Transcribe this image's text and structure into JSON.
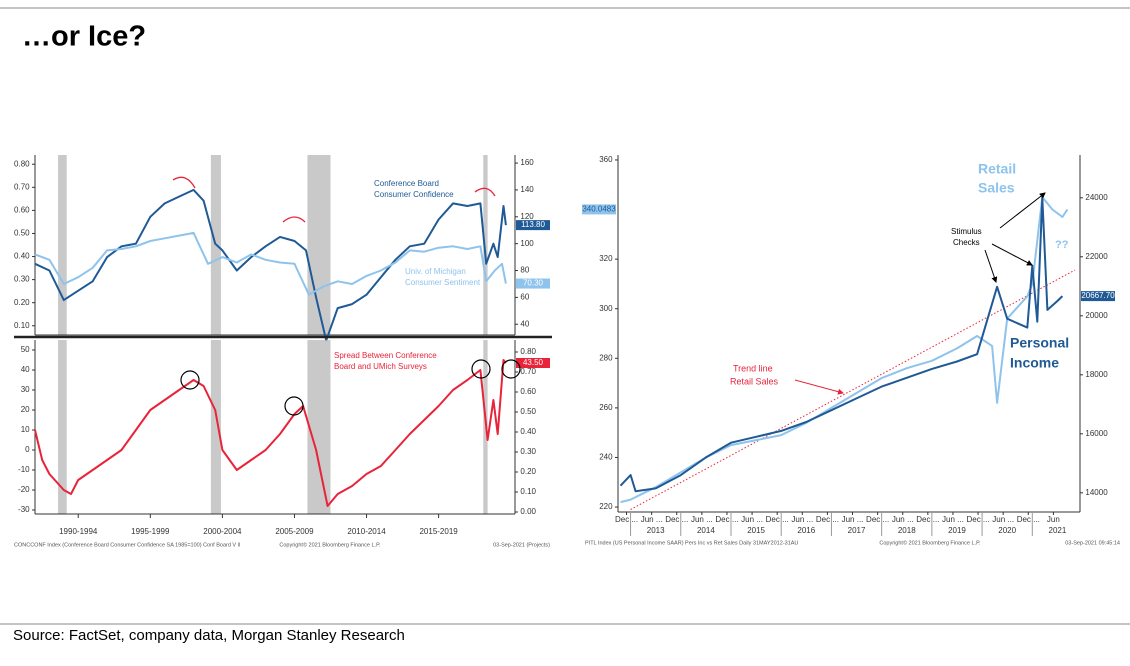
{
  "title": "…or Ice?",
  "source": "Source: FactSet, company data, Morgan Stanley Research",
  "chart_data": [
    {
      "type": "line",
      "xlim": [
        1989,
        2022.3
      ],
      "ylim": [
        0.06,
        0.84
      ],
      "yticks": [
        {
          "value": 0.1,
          "label": "0.10"
        },
        {
          "value": 0.2,
          "label": "0.20"
        },
        {
          "value": 0.3,
          "label": "0.30"
        },
        {
          "value": 0.4,
          "label": "0.40"
        },
        {
          "value": 0.5,
          "label": "0.50"
        },
        {
          "value": 0.6,
          "label": "0.60"
        },
        {
          "value": 0.7,
          "label": "0.70"
        },
        {
          "value": 0.8,
          "label": "0.80"
        }
      ],
      "y2lim": [
        32,
        166
      ],
      "y2ticks": [
        40,
        60,
        80,
        100,
        120,
        140,
        160
      ],
      "shaded": [
        [
          1990.6,
          1991.2
        ],
        [
          2001.2,
          2001.9
        ],
        [
          2007.9,
          2009.5
        ],
        [
          2020.1,
          2020.4
        ]
      ],
      "series": [
        {
          "label_lines": [
            "Conference Board",
            "Consumer Confidence"
          ],
          "color": "#1f5a96",
          "axis": "y2",
          "last_label": "113.80",
          "x": [
            1989,
            1990,
            1991,
            1992,
            1993,
            1994,
            1995,
            1996,
            1997,
            1998,
            1999,
            2000,
            2000.7,
            2001.5,
            2002,
            2003,
            2004,
            2005,
            2006,
            2007,
            2007.8,
            2008.5,
            2009.2,
            2010,
            2011,
            2012,
            2013,
            2014,
            2015,
            2016,
            2017,
            2018,
            2019,
            2019.9,
            2020.3,
            2020.8,
            2021.1,
            2021.5,
            2021.67
          ],
          "values": [
            85,
            80,
            58,
            65,
            72,
            90,
            98,
            100,
            120,
            130,
            135,
            140,
            132,
            100,
            95,
            80,
            90,
            98,
            105,
            102,
            95,
            60,
            28,
            52,
            55,
            62,
            75,
            88,
            98,
            100,
            118,
            130,
            128,
            130,
            85,
            100,
            90,
            128,
            113.8
          ]
        },
        {
          "label_lines": [
            "Univ. of Michigan",
            "Consumer Sentiment"
          ],
          "color": "#8ec3ec",
          "axis": "y2",
          "last_label": "70.30",
          "x": [
            1989,
            1990,
            1991,
            1992,
            1993,
            1994,
            1995,
            1996,
            1997,
            1998,
            1999,
            2000,
            2001,
            2002,
            2003,
            2004,
            2005,
            2006,
            2007,
            2008,
            2009,
            2010,
            2011,
            2012,
            2013,
            2014,
            2015,
            2016,
            2017,
            2018,
            2019,
            2019.9,
            2020.3,
            2020.9,
            2021.4,
            2021.67
          ],
          "values": [
            92,
            88,
            70,
            75,
            82,
            95,
            96,
            98,
            102,
            104,
            106,
            108,
            85,
            90,
            86,
            92,
            88,
            86,
            85,
            62,
            68,
            72,
            70,
            76,
            80,
            86,
            95,
            94,
            97,
            98,
            96,
            98,
            72,
            80,
            85,
            70.3
          ]
        }
      ]
    },
    {
      "type": "line",
      "xlim": [
        1989,
        2022.3
      ],
      "xticks": [
        {
          "value": 1992,
          "label": "1990-1994"
        },
        {
          "value": 1997,
          "label": "1995-1999"
        },
        {
          "value": 2002,
          "label": "2000-2004"
        },
        {
          "value": 2007,
          "label": "2005-2009"
        },
        {
          "value": 2012,
          "label": "2010-2014"
        },
        {
          "value": 2017,
          "label": "2015-2019"
        }
      ],
      "ylim": [
        -32,
        55
      ],
      "yticks": [
        -30,
        -20,
        -10,
        0,
        10,
        20,
        30,
        40,
        50
      ],
      "y2lim": [
        -0.01,
        0.86
      ],
      "y2ticks": [
        {
          "value": 0,
          "label": "0.00"
        },
        {
          "value": 0.1,
          "label": "0.10"
        },
        {
          "value": 0.2,
          "label": "0.20"
        },
        {
          "value": 0.3,
          "label": "0.30"
        },
        {
          "value": 0.4,
          "label": "0.40"
        },
        {
          "value": 0.5,
          "label": "0.50"
        },
        {
          "value": 0.6,
          "label": "0.60"
        },
        {
          "value": 0.7,
          "label": "0.70"
        },
        {
          "value": 0.8,
          "label": "0.80"
        }
      ],
      "shaded": [
        [
          1990.6,
          1991.2
        ],
        [
          2001.2,
          2001.9
        ],
        [
          2007.9,
          2009.5
        ],
        [
          2020.1,
          2020.4
        ]
      ],
      "footer": [
        "CONCCONF Index (Conference Board Consumer Confidence SA 1985=100) Conf Board V ll",
        "Copyright© 2021 Bloomberg Finance L.P.",
        "03-Sep-2021 (Projects)"
      ],
      "series": [
        {
          "label_lines": [
            "Spread Between Conference",
            "Board and UMich Surveys"
          ],
          "color": "#e8233a",
          "axis": "y",
          "last_label": "43.50",
          "x": [
            1989,
            1989.5,
            1990,
            1991,
            1991.5,
            1992,
            1993,
            1994,
            1995,
            1996,
            1997,
            1998,
            1999,
            2000,
            2000.7,
            2001.5,
            2002,
            2003,
            2004,
            2005,
            2006,
            2007,
            2007.6,
            2008.5,
            2009.3,
            2010,
            2011,
            2012,
            2013,
            2014,
            2015,
            2016,
            2017,
            2018,
            2019,
            2019.9,
            2020.4,
            2020.8,
            2021.1,
            2021.5,
            2021.67
          ],
          "values": [
            10,
            -5,
            -12,
            -20,
            -22,
            -15,
            -10,
            -5,
            0,
            10,
            20,
            25,
            30,
            35,
            32,
            20,
            0,
            -10,
            -5,
            0,
            8,
            18,
            22,
            0,
            -28,
            -22,
            -18,
            -12,
            -8,
            0,
            8,
            15,
            22,
            30,
            35,
            40,
            5,
            25,
            8,
            45,
            43.5
          ]
        }
      ]
    },
    {
      "type": "line",
      "xlim": [
        2012.75,
        2021.95
      ],
      "xticks": [
        2013,
        2014,
        2015,
        2016,
        2017,
        2018,
        2019,
        2020,
        2021
      ],
      "xminor": [
        {
          "value": 2012.92,
          "label": "Dec ..."
        },
        {
          "value": 2013.42,
          "label": "Jun ..."
        },
        {
          "value": 2013.92,
          "label": "Dec ..."
        },
        {
          "value": 2014.42,
          "label": "Jun ..."
        },
        {
          "value": 2014.92,
          "label": "Dec ..."
        },
        {
          "value": 2015.42,
          "label": "Jun ..."
        },
        {
          "value": 2015.92,
          "label": "Dec ..."
        },
        {
          "value": 2016.42,
          "label": "Jun ..."
        },
        {
          "value": 2016.92,
          "label": "Dec ..."
        },
        {
          "value": 2017.42,
          "label": "Jun ..."
        },
        {
          "value": 2017.92,
          "label": "Dec ..."
        },
        {
          "value": 2018.42,
          "label": "Jun ..."
        },
        {
          "value": 2018.92,
          "label": "Dec ..."
        },
        {
          "value": 2019.42,
          "label": "Jun ..."
        },
        {
          "value": 2019.92,
          "label": "Dec ..."
        },
        {
          "value": 2020.42,
          "label": "Jun ..."
        },
        {
          "value": 2020.92,
          "label": "Dec ..."
        },
        {
          "value": 2021.42,
          "label": "Jun"
        }
      ],
      "ylim": [
        218,
        362
      ],
      "yticks": [
        220,
        240,
        260,
        280,
        300,
        320,
        360
      ],
      "y2lim": [
        13350,
        25450
      ],
      "y2ticks": [
        14000,
        16000,
        18000,
        20000,
        22000,
        24000
      ],
      "trend": {
        "x": [
          2013.0,
          2021.85
        ],
        "values": [
          219,
          315.6
        ],
        "color": "#e8233a"
      },
      "footer": [
        "PITL Index (US Personal Income SAAR) Pers Inc vs Ret Sales  Daily 31MAY2012-31AU",
        "Copyright© 2021 Bloomberg Finance L.P.",
        "03-Sep-2021 09:45:14"
      ],
      "annotations": {
        "retail": [
          "Retail",
          "Sales"
        ],
        "stimulus": [
          "Stimulus",
          "Checks"
        ],
        "question": "??",
        "income": [
          "Personal",
          "Income"
        ],
        "trend": [
          "Trend line",
          "Retail Sales"
        ]
      },
      "series": [
        {
          "color": "#8ec3ec",
          "axis": "y",
          "last_label": "340.0483",
          "x": [
            2012.8,
            2013.0,
            2013.5,
            2014,
            2014.5,
            2015,
            2015.5,
            2016,
            2016.5,
            2017,
            2017.5,
            2018,
            2018.5,
            2019,
            2019.5,
            2019.9,
            2020.2,
            2020.3,
            2020.5,
            2020.9,
            2021.0,
            2021.2,
            2021.4,
            2021.6,
            2021.7
          ],
          "values": [
            222,
            223,
            228,
            234,
            240,
            245,
            247,
            249,
            254,
            260,
            266,
            272,
            276,
            279,
            284,
            289,
            285,
            262,
            296,
            305,
            310,
            345,
            340,
            337,
            340.05
          ]
        },
        {
          "color": "#1f5a96",
          "axis": "y2",
          "last_label": "20667.70",
          "x": [
            2012.8,
            2013.0,
            2013.1,
            2013.5,
            2014,
            2014.5,
            2015,
            2015.5,
            2016,
            2016.5,
            2017,
            2017.5,
            2018,
            2018.5,
            2019,
            2019.5,
            2019.9,
            2020.3,
            2020.5,
            2020.9,
            2021.0,
            2021.1,
            2021.2,
            2021.3,
            2021.5,
            2021.6
          ],
          "values": [
            14240,
            14600,
            14050,
            14150,
            14600,
            15200,
            15700,
            15900,
            16100,
            16400,
            16800,
            17200,
            17600,
            17900,
            18200,
            18450,
            18700,
            20983,
            19900,
            19600,
            21700,
            19800,
            24000,
            20200,
            20500,
            20667.7
          ]
        }
      ]
    }
  ]
}
